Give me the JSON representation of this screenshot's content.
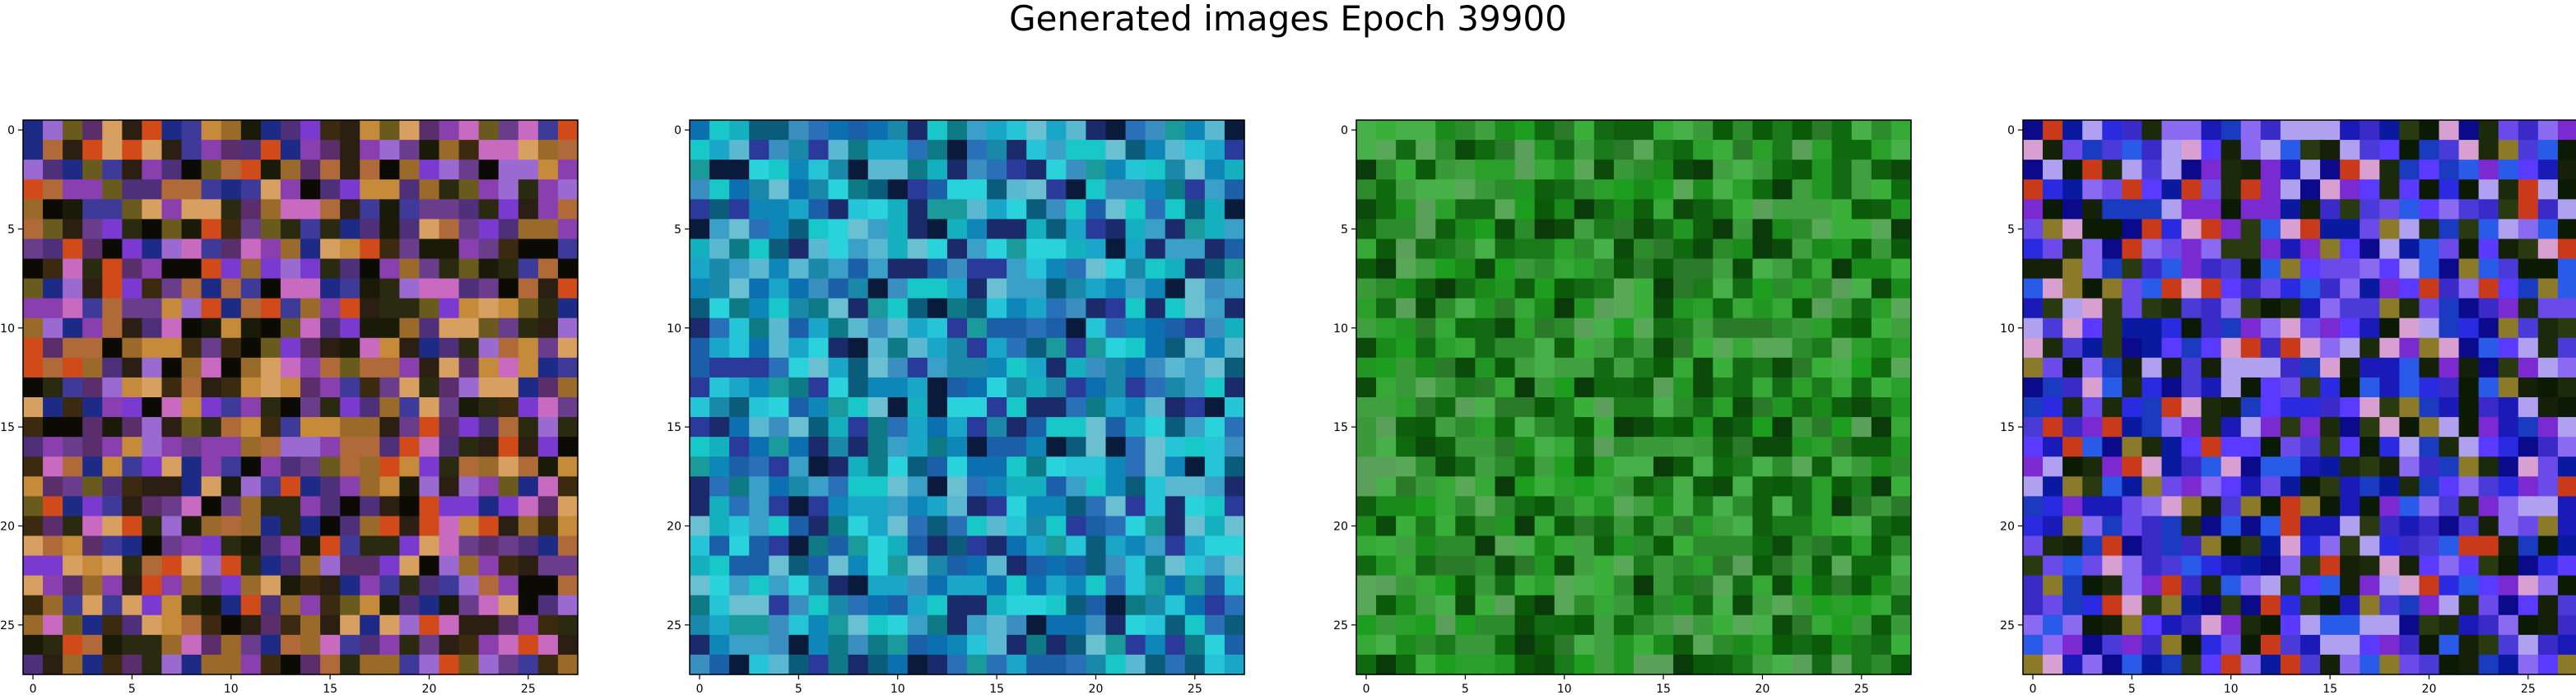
{
  "title": "Generated images Epoch 39900",
  "chart_data": [
    {
      "type": "heatmap",
      "title": "",
      "xlabel": "",
      "ylabel": "",
      "grid": false,
      "image_size": 28,
      "xlim": [
        -0.5,
        27.5
      ],
      "ylim": [
        27.5,
        -0.5
      ],
      "xticks": [
        0,
        5,
        10,
        15,
        20,
        25
      ],
      "yticks": [
        0,
        5,
        10,
        15,
        20,
        25
      ],
      "palette": [
        "#6a3c8c",
        "#4d2f7a",
        "#8a3fae",
        "#3d3a9a",
        "#1d2a86",
        "#5a2d6b",
        "#2a1f12",
        "#1a1a08",
        "#3b2a10",
        "#6b5a1e",
        "#9a6a2a",
        "#c58a3a",
        "#b06a3a",
        "#d04a1a",
        "#d8a060",
        "#c86ac0",
        "#9b6ad0",
        "#7a3ad0",
        "#2a2a10",
        "#0b0b04"
      ],
      "seed": 17
    },
    {
      "type": "heatmap",
      "title": "",
      "xlabel": "",
      "ylabel": "",
      "grid": false,
      "image_size": 28,
      "xlim": [
        -0.5,
        27.5
      ],
      "ylim": [
        27.5,
        -0.5
      ],
      "xticks": [
        0,
        5,
        10,
        15,
        20,
        25
      ],
      "yticks": [
        0,
        5,
        10,
        15,
        20,
        25
      ],
      "palette": [
        "#1aa6c8",
        "#0f86b8",
        "#25c4d6",
        "#2ad2dc",
        "#0c6fb0",
        "#1a5fa8",
        "#3a8ec0",
        "#5ab8d0",
        "#1a9a9a",
        "#0d7a86",
        "#2a3a9a",
        "#1a2a6a",
        "#3aa0c8",
        "#14b0c0",
        "#0a5c7a",
        "#6ac0d0",
        "#2a70b8",
        "#0a1a3a",
        "#18c8c8",
        "#1a88a8"
      ],
      "seed": 29
    },
    {
      "type": "heatmap",
      "title": "",
      "xlabel": "",
      "ylabel": "",
      "grid": false,
      "image_size": 28,
      "xlim": [
        -0.5,
        27.5
      ],
      "ylim": [
        27.5,
        -0.5
      ],
      "xticks": [
        0,
        5,
        10,
        15,
        20,
        25
      ],
      "yticks": [
        0,
        5,
        10,
        15,
        20,
        25
      ],
      "palette": [
        "#1a8a1a",
        "#0f6a0f",
        "#2aa02a",
        "#3ab03a",
        "#0a5a0a",
        "#48b048",
        "#2a7a2a",
        "#1e9e1e",
        "#5aa05a",
        "#0c4a0c",
        "#229622",
        "#36a836",
        "#146a14",
        "#58a858",
        "#1a7a1a",
        "#2c8c2c",
        "#0e5e0e",
        "#40a040",
        "#0a3a0a",
        "#3a9a3a"
      ],
      "seed": 43
    },
    {
      "type": "heatmap",
      "title": "",
      "xlabel": "",
      "ylabel": "",
      "grid": false,
      "image_size": 28,
      "xlim": [
        -0.5,
        27.5
      ],
      "ylim": [
        27.5,
        -0.5
      ],
      "xticks": [
        0,
        5,
        10,
        15,
        20,
        25
      ],
      "yticks": [
        0,
        5,
        10,
        15,
        20,
        25
      ],
      "palette": [
        "#2a2ae0",
        "#1a1ab8",
        "#4a3ad8",
        "#6a4ae8",
        "#3a2ac8",
        "#0a0a8a",
        "#5a3aff",
        "#2a5ae8",
        "#7a2ad0",
        "#1a3ac0",
        "#8a6af0",
        "#0a1aa0",
        "#1a2a0a",
        "#0a1a04",
        "#2a3a10",
        "#142008",
        "#c83a1a",
        "#d8a0d0",
        "#b0a0f0",
        "#8a7a2a"
      ],
      "seed": 61
    }
  ]
}
